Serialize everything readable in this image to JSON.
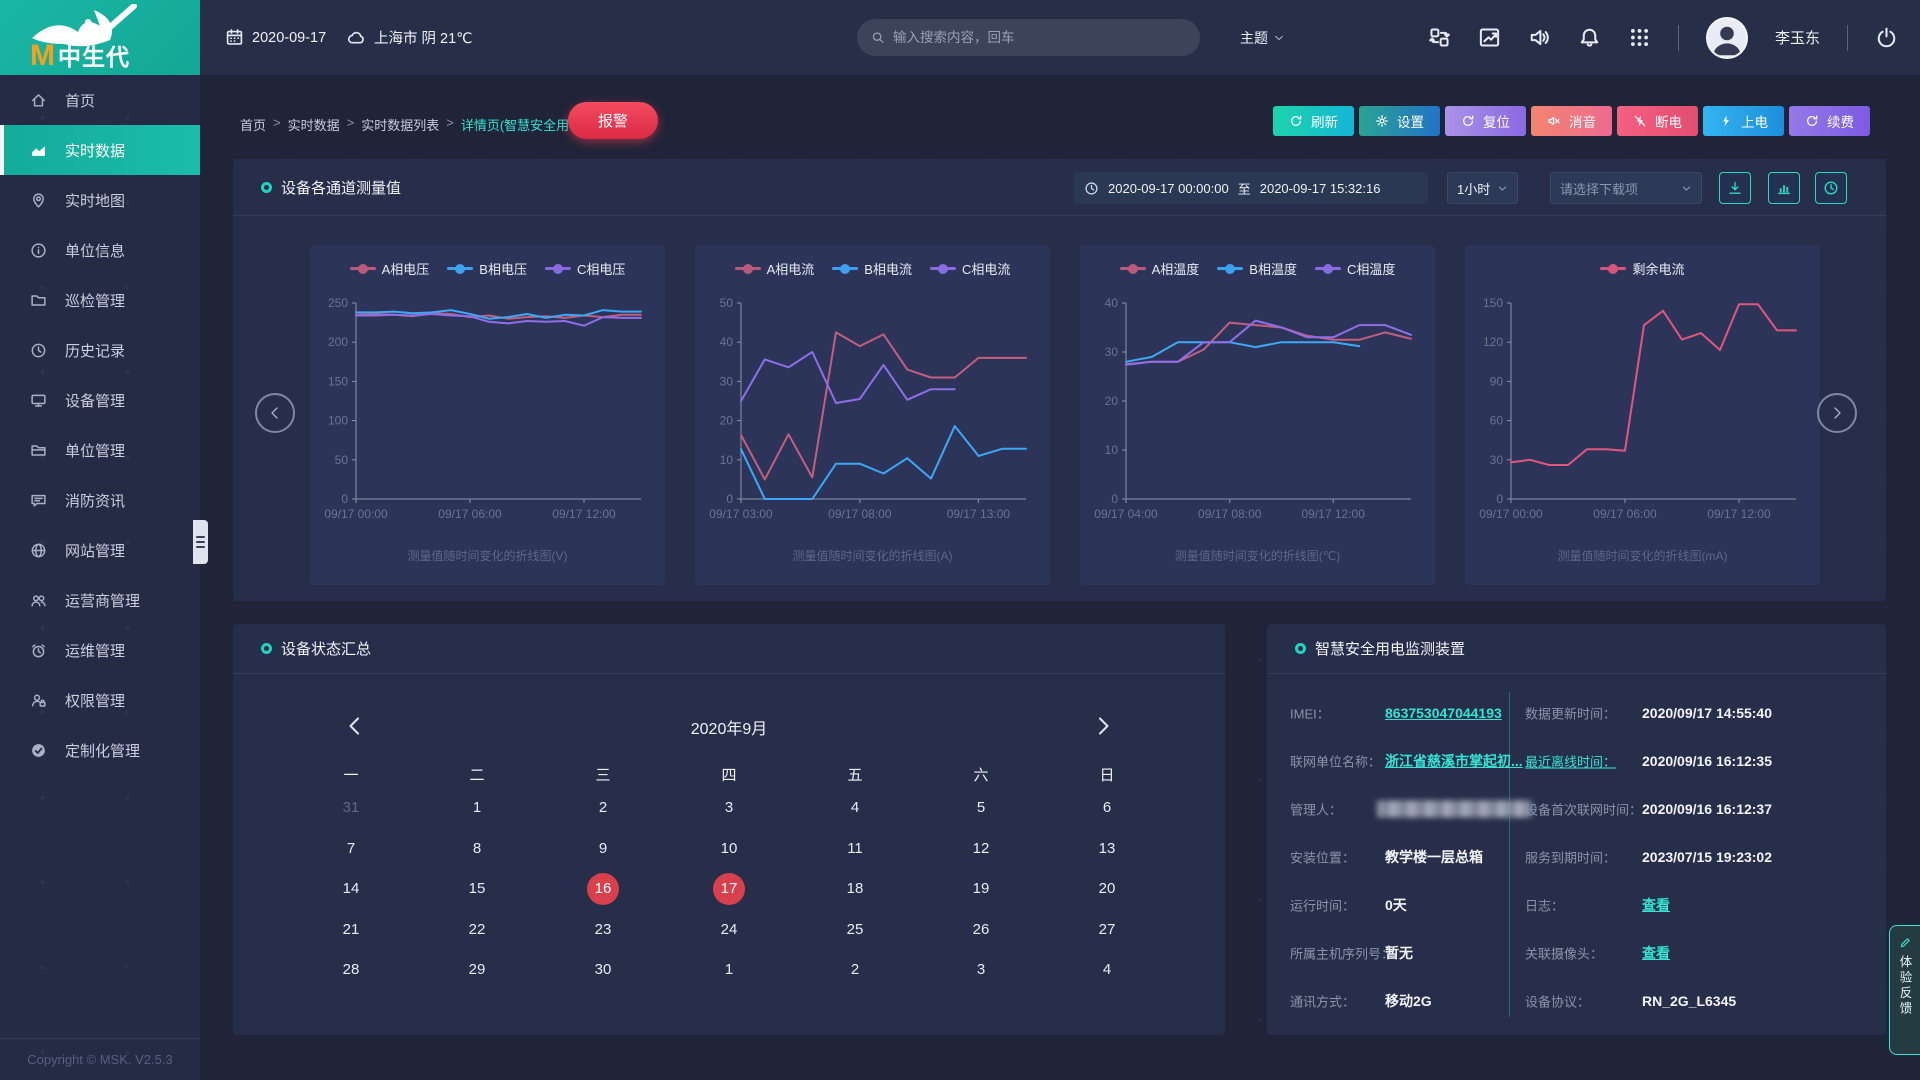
{
  "colors": {
    "accent": "#1fc0ad",
    "link": "#35e3d2",
    "alarm_red": "#e8354e",
    "calendar_highlight": "#d8404d"
  },
  "header": {
    "brand_m": "M",
    "brand_name": "中生代",
    "date": "2020-09-17",
    "weather": "上海市 阴 21℃",
    "search_placeholder": "输入搜索内容，回车",
    "theme_label": "主题",
    "user_name": "李玉东",
    "icon_buttons": [
      "swap",
      "trend",
      "speaker",
      "bell",
      "grid"
    ]
  },
  "sidebar": {
    "items": [
      {
        "label": "首页",
        "icon": "home"
      },
      {
        "label": "实时数据",
        "icon": "chart-area",
        "active": true
      },
      {
        "label": "实时地图",
        "icon": "map-pin"
      },
      {
        "label": "单位信息",
        "icon": "info"
      },
      {
        "label": "巡检管理",
        "icon": "folder"
      },
      {
        "label": "历史记录",
        "icon": "clock"
      },
      {
        "label": "设备管理",
        "icon": "monitor"
      },
      {
        "label": "单位管理",
        "icon": "folder-open"
      },
      {
        "label": "消防资讯",
        "icon": "chat"
      },
      {
        "label": "网站管理",
        "icon": "globe"
      },
      {
        "label": "运营商管理",
        "icon": "users"
      },
      {
        "label": "运维管理",
        "icon": "alarm-clock"
      },
      {
        "label": "权限管理",
        "icon": "user-lock"
      },
      {
        "label": "定制化管理",
        "icon": "tag"
      }
    ],
    "copyright": "Copyright © MSK. V2.5.3"
  },
  "breadcrumb": {
    "items": [
      "首页",
      "实时数据",
      "实时数据列表"
    ],
    "current": "详情页(智慧安全用电监测装置)",
    "alarm_label": "报警"
  },
  "toolbar": [
    {
      "label": "刷新",
      "icon": "refresh",
      "g1": "#1dd3ab",
      "g2": "#14b6d6"
    },
    {
      "label": "设置",
      "icon": "gear",
      "g1": "#2aa392",
      "g2": "#2273c8"
    },
    {
      "label": "复位",
      "icon": "refresh",
      "g1": "#ab92e8",
      "g2": "#8a68e0"
    },
    {
      "label": "消音",
      "icon": "speaker-mute",
      "g1": "#f28570",
      "g2": "#ee6a90"
    },
    {
      "label": "断电",
      "icon": "lightning-off",
      "g1": "#f4607f",
      "g2": "#e14e72"
    },
    {
      "label": "上电",
      "icon": "lightning",
      "g1": "#33b4f0",
      "g2": "#1e8edc"
    },
    {
      "label": "续费",
      "icon": "refresh",
      "g1": "#9678e8",
      "g2": "#7d5ae2"
    }
  ],
  "charts_panel": {
    "title": "设备各通道测量值",
    "time_start": "2020-09-17 00:00:00",
    "time_separator": "至",
    "time_end": "2020-09-17 15:32:16",
    "interval": "1小时",
    "download_placeholder": "请选择下载项",
    "mini_buttons": [
      "download",
      "bars",
      "clock"
    ]
  },
  "chart_data": [
    {
      "type": "line",
      "title": "测量值随时间变化的折线图(V)",
      "unit": "V",
      "ylim": [
        0,
        250
      ],
      "yticks": [
        0,
        50,
        100,
        150,
        200,
        250
      ],
      "x_labels": [
        {
          "text": "09/17 00:00",
          "pos": 0
        },
        {
          "text": "09/17 06:00",
          "pos": 0.4
        },
        {
          "text": "09/17 12:00",
          "pos": 0.8
        }
      ],
      "series": [
        {
          "name": "A相电压",
          "color": "#c25e7e",
          "values": [
            235,
            236,
            235,
            233,
            237,
            236,
            232,
            234,
            230,
            232,
            233,
            231,
            234,
            232,
            235,
            235
          ]
        },
        {
          "name": "B相电压",
          "color": "#3da8f5",
          "values": [
            238,
            238,
            239,
            237,
            238,
            241,
            236,
            230,
            232,
            236,
            231,
            235,
            234,
            241,
            239,
            239
          ]
        },
        {
          "name": "C相电压",
          "color": "#8d6fe8",
          "values": [
            234,
            234,
            235,
            234,
            236,
            234,
            233,
            226,
            224,
            227,
            226,
            227,
            221,
            232,
            231,
            231
          ]
        }
      ]
    },
    {
      "type": "line",
      "title": "测量值随时间变化的折线图(A)",
      "unit": "A",
      "ylim": [
        0,
        50
      ],
      "yticks": [
        0,
        10,
        20,
        30,
        40,
        50
      ],
      "x_labels": [
        {
          "text": "09/17 03:00",
          "pos": 0
        },
        {
          "text": "09/17 08:00",
          "pos": 0.417
        },
        {
          "text": "09/17 13:00",
          "pos": 0.833
        }
      ],
      "series": [
        {
          "name": "A相电流",
          "color": "#c25e7e",
          "values": [
            16.3,
            5,
            16.5,
            5.5,
            42.5,
            39,
            42,
            33,
            31,
            31,
            36,
            36,
            36
          ]
        },
        {
          "name": "B相电流",
          "color": "#3da8f5",
          "values": [
            12.7,
            0,
            0,
            0,
            9,
            9,
            6.5,
            10.4,
            5.2,
            18.6,
            11,
            12.8,
            12.8
          ]
        },
        {
          "name": "C相电流",
          "color": "#8d6fe8",
          "values": [
            25,
            35.6,
            33.6,
            37.5,
            24.5,
            25.5,
            34.2,
            25.3,
            28,
            28
          ]
        }
      ]
    },
    {
      "type": "line",
      "title": "测量值随时间变化的折线图(℃)",
      "unit": "℃",
      "ylim": [
        0,
        40
      ],
      "yticks": [
        0,
        10,
        20,
        30,
        40
      ],
      "x_labels": [
        {
          "text": "09/17 04:00",
          "pos": 0
        },
        {
          "text": "09/17 08:00",
          "pos": 0.364
        },
        {
          "text": "09/17 12:00",
          "pos": 0.727
        }
      ],
      "series": [
        {
          "name": "A相温度",
          "color": "#c25e7e",
          "values": [
            27.5,
            28,
            28,
            30.5,
            36,
            35.5,
            35,
            33.3,
            32.5,
            32.5,
            34,
            32.7
          ]
        },
        {
          "name": "B相温度",
          "color": "#3da8f5",
          "values": [
            28,
            29,
            32,
            32,
            32,
            31,
            32,
            32,
            32,
            31.2
          ]
        },
        {
          "name": "C相温度",
          "color": "#8d6fe8",
          "values": [
            27.4,
            28,
            28,
            32,
            32,
            36.4,
            35,
            33,
            33,
            35.5,
            35.5,
            33.5
          ]
        }
      ]
    },
    {
      "type": "line",
      "title": "测量值随时间变化的折线图(mA)",
      "unit": "mA",
      "ylim": [
        0,
        150
      ],
      "yticks": [
        0,
        30,
        60,
        90,
        120,
        150
      ],
      "x_labels": [
        {
          "text": "09/17 00:00",
          "pos": 0
        },
        {
          "text": "09/17 06:00",
          "pos": 0.4
        },
        {
          "text": "09/17 12:00",
          "pos": 0.8
        }
      ],
      "series": [
        {
          "name": "剩余电流",
          "color": "#e0577c",
          "values": [
            28,
            30,
            26,
            26,
            38,
            38,
            37,
            133,
            144,
            122,
            127,
            114,
            149,
            149,
            129,
            129
          ]
        }
      ]
    }
  ],
  "status_panel": {
    "title": "设备状态汇总",
    "calendar": {
      "month": "2020年9月",
      "weekdays": [
        "一",
        "二",
        "三",
        "四",
        "五",
        "六",
        "日"
      ],
      "weeks": [
        [
          {
            "d": "31",
            "muted": true
          },
          {
            "d": "1"
          },
          {
            "d": "2"
          },
          {
            "d": "3"
          },
          {
            "d": "4"
          },
          {
            "d": "5"
          },
          {
            "d": "6"
          }
        ],
        [
          {
            "d": "7"
          },
          {
            "d": "8"
          },
          {
            "d": "9"
          },
          {
            "d": "10"
          },
          {
            "d": "11"
          },
          {
            "d": "12"
          },
          {
            "d": "13"
          }
        ],
        [
          {
            "d": "14"
          },
          {
            "d": "15"
          },
          {
            "d": "16",
            "highlight": true
          },
          {
            "d": "17",
            "highlight": true
          },
          {
            "d": "18"
          },
          {
            "d": "19"
          },
          {
            "d": "20"
          }
        ],
        [
          {
            "d": "21"
          },
          {
            "d": "22"
          },
          {
            "d": "23"
          },
          {
            "d": "24"
          },
          {
            "d": "25"
          },
          {
            "d": "26"
          },
          {
            "d": "27"
          }
        ],
        [
          {
            "d": "28"
          },
          {
            "d": "29"
          },
          {
            "d": "30"
          },
          {
            "d": "1"
          },
          {
            "d": "2"
          },
          {
            "d": "3"
          },
          {
            "d": "4"
          }
        ]
      ]
    }
  },
  "device_panel": {
    "title": "智慧安全用电监测装置",
    "rows": [
      {
        "l_label": "IMEI：",
        "l_value": "863753047044193",
        "l_type": "link",
        "r_label": "数据更新时间：",
        "r_value": "2020/09/17 14:55:40"
      },
      {
        "l_label": "联网单位名称：",
        "l_value": "浙江省慈溪市掌起初...",
        "l_type": "link",
        "r_label": "最近离线时间：",
        "r_label_link": true,
        "r_value": "2020/09/16 16:12:35"
      },
      {
        "l_label": "管理人：",
        "l_value": "",
        "l_type": "redacted",
        "r_label": "设备首次联网时间：",
        "r_value": "2020/09/16 16:12:37"
      },
      {
        "l_label": "安装位置：",
        "l_value": "教学楼一层总箱",
        "r_label": "服务到期时间：",
        "r_value": "2023/07/15 19:23:02"
      },
      {
        "l_label": "运行时间：",
        "l_value": "0天",
        "r_label": "日志：",
        "r_value": "查看",
        "r_type": "link"
      },
      {
        "l_label": "所属主机序列号：",
        "l_value": "暂无",
        "r_label": "关联摄像头：",
        "r_value": "查看",
        "r_type": "link"
      },
      {
        "l_label": "通讯方式：",
        "l_value": "移动2G",
        "r_label": "设备协议：",
        "r_value": "RN_2G_L6345"
      }
    ]
  },
  "feedback_label": "体验反馈"
}
